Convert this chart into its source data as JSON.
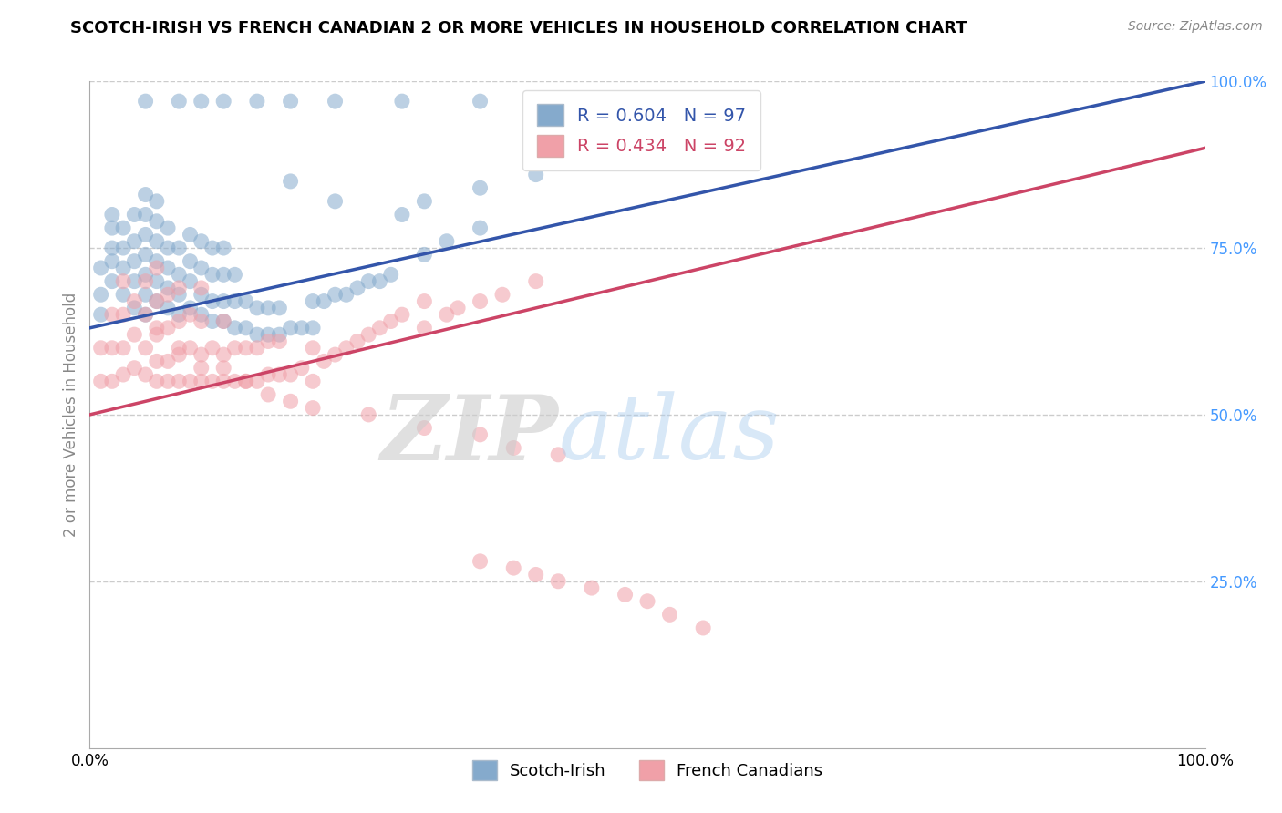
{
  "title": "SCOTCH-IRISH VS FRENCH CANADIAN 2 OR MORE VEHICLES IN HOUSEHOLD CORRELATION CHART",
  "source": "Source: ZipAtlas.com",
  "ylabel": "2 or more Vehicles in Household",
  "xlim": [
    0,
    1
  ],
  "ylim": [
    0,
    1
  ],
  "legend_blue_label": "Scotch-Irish",
  "legend_pink_label": "French Canadians",
  "R_blue": 0.604,
  "N_blue": 97,
  "R_pink": 0.434,
  "N_pink": 92,
  "blue_color": "#85AACC",
  "pink_color": "#F0A0A8",
  "blue_line_color": "#3355AA",
  "pink_line_color": "#CC4466",
  "blue_scatter_x": [
    0.01,
    0.01,
    0.01,
    0.02,
    0.02,
    0.02,
    0.02,
    0.02,
    0.03,
    0.03,
    0.03,
    0.03,
    0.04,
    0.04,
    0.04,
    0.04,
    0.04,
    0.05,
    0.05,
    0.05,
    0.05,
    0.05,
    0.05,
    0.05,
    0.06,
    0.06,
    0.06,
    0.06,
    0.06,
    0.06,
    0.07,
    0.07,
    0.07,
    0.07,
    0.07,
    0.08,
    0.08,
    0.08,
    0.08,
    0.09,
    0.09,
    0.09,
    0.09,
    0.1,
    0.1,
    0.1,
    0.1,
    0.11,
    0.11,
    0.11,
    0.11,
    0.12,
    0.12,
    0.12,
    0.12,
    0.13,
    0.13,
    0.13,
    0.14,
    0.14,
    0.15,
    0.15,
    0.16,
    0.16,
    0.17,
    0.17,
    0.18,
    0.19,
    0.2,
    0.2,
    0.21,
    0.22,
    0.23,
    0.24,
    0.25,
    0.26,
    0.27,
    0.3,
    0.32,
    0.35,
    0.18,
    0.22,
    0.28,
    0.3,
    0.35,
    0.4,
    0.05,
    0.08,
    0.1,
    0.12,
    0.15,
    0.18,
    0.22,
    0.28,
    0.35,
    0.42,
    0.5
  ],
  "blue_scatter_y": [
    0.65,
    0.68,
    0.72,
    0.7,
    0.73,
    0.75,
    0.78,
    0.8,
    0.68,
    0.72,
    0.75,
    0.78,
    0.66,
    0.7,
    0.73,
    0.76,
    0.8,
    0.65,
    0.68,
    0.71,
    0.74,
    0.77,
    0.8,
    0.83,
    0.67,
    0.7,
    0.73,
    0.76,
    0.79,
    0.82,
    0.66,
    0.69,
    0.72,
    0.75,
    0.78,
    0.65,
    0.68,
    0.71,
    0.75,
    0.66,
    0.7,
    0.73,
    0.77,
    0.65,
    0.68,
    0.72,
    0.76,
    0.64,
    0.67,
    0.71,
    0.75,
    0.64,
    0.67,
    0.71,
    0.75,
    0.63,
    0.67,
    0.71,
    0.63,
    0.67,
    0.62,
    0.66,
    0.62,
    0.66,
    0.62,
    0.66,
    0.63,
    0.63,
    0.63,
    0.67,
    0.67,
    0.68,
    0.68,
    0.69,
    0.7,
    0.7,
    0.71,
    0.74,
    0.76,
    0.78,
    0.85,
    0.82,
    0.8,
    0.82,
    0.84,
    0.86,
    0.97,
    0.97,
    0.97,
    0.97,
    0.97,
    0.97,
    0.97,
    0.97,
    0.97,
    0.97,
    0.97
  ],
  "pink_scatter_x": [
    0.01,
    0.01,
    0.02,
    0.02,
    0.02,
    0.03,
    0.03,
    0.03,
    0.03,
    0.04,
    0.04,
    0.04,
    0.05,
    0.05,
    0.05,
    0.05,
    0.06,
    0.06,
    0.06,
    0.06,
    0.06,
    0.07,
    0.07,
    0.07,
    0.07,
    0.08,
    0.08,
    0.08,
    0.08,
    0.09,
    0.09,
    0.09,
    0.1,
    0.1,
    0.1,
    0.1,
    0.11,
    0.11,
    0.12,
    0.12,
    0.12,
    0.13,
    0.13,
    0.14,
    0.14,
    0.15,
    0.15,
    0.16,
    0.16,
    0.17,
    0.17,
    0.18,
    0.19,
    0.2,
    0.2,
    0.21,
    0.22,
    0.23,
    0.24,
    0.25,
    0.26,
    0.27,
    0.28,
    0.3,
    0.3,
    0.32,
    0.33,
    0.35,
    0.37,
    0.4,
    0.06,
    0.08,
    0.1,
    0.12,
    0.14,
    0.16,
    0.18,
    0.2,
    0.25,
    0.3,
    0.35,
    0.38,
    0.42,
    0.35,
    0.38,
    0.4,
    0.42,
    0.45,
    0.48,
    0.5,
    0.52,
    0.55
  ],
  "pink_scatter_y": [
    0.55,
    0.6,
    0.55,
    0.6,
    0.65,
    0.56,
    0.6,
    0.65,
    0.7,
    0.57,
    0.62,
    0.67,
    0.56,
    0.6,
    0.65,
    0.7,
    0.55,
    0.58,
    0.62,
    0.67,
    0.72,
    0.55,
    0.58,
    0.63,
    0.68,
    0.55,
    0.59,
    0.64,
    0.69,
    0.55,
    0.6,
    0.65,
    0.55,
    0.59,
    0.64,
    0.69,
    0.55,
    0.6,
    0.55,
    0.59,
    0.64,
    0.55,
    0.6,
    0.55,
    0.6,
    0.55,
    0.6,
    0.56,
    0.61,
    0.56,
    0.61,
    0.56,
    0.57,
    0.55,
    0.6,
    0.58,
    0.59,
    0.6,
    0.61,
    0.62,
    0.63,
    0.64,
    0.65,
    0.63,
    0.67,
    0.65,
    0.66,
    0.67,
    0.68,
    0.7,
    0.63,
    0.6,
    0.57,
    0.57,
    0.55,
    0.53,
    0.52,
    0.51,
    0.5,
    0.48,
    0.47,
    0.45,
    0.44,
    0.28,
    0.27,
    0.26,
    0.25,
    0.24,
    0.23,
    0.22,
    0.2,
    0.18
  ]
}
